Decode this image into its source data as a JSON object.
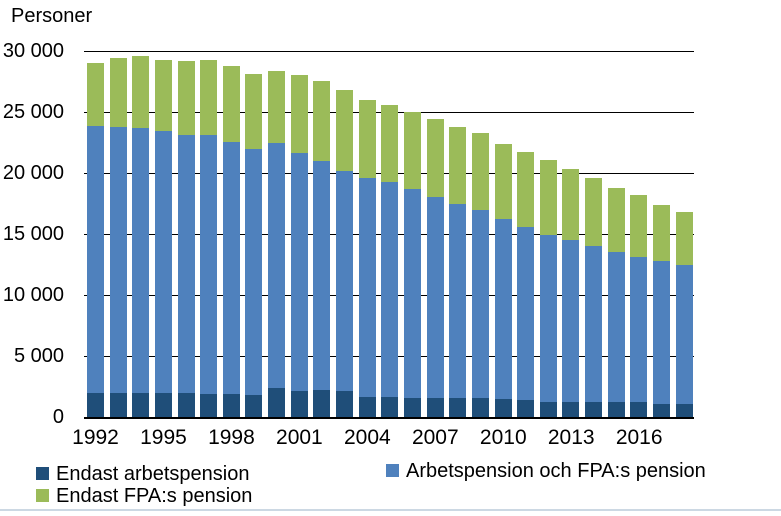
{
  "title": "Personer",
  "colors": {
    "endast_arbetspension": "#1F4E79",
    "arbetspension_och_fpa": "#4F81BD",
    "endast_fpa": "#9BBB59",
    "gridline": "#000000",
    "axis_line": "#000000",
    "bottom_separator": "#ccd8e3"
  },
  "chart_data": {
    "type": "bar",
    "stacked": true,
    "title": "Personer",
    "xlabel": "",
    "ylabel": "Personer",
    "ylim": [
      0,
      30000
    ],
    "grid": "horizontal",
    "legend_position": "bottom",
    "x": [
      1992,
      1993,
      1994,
      1995,
      1996,
      1997,
      1998,
      1999,
      2000,
      2001,
      2002,
      2003,
      2004,
      2005,
      2006,
      2007,
      2008,
      2009,
      2010,
      2011,
      2012,
      2013,
      2014,
      2015,
      2016,
      2017,
      2018
    ],
    "x_tick_labels": [
      "1992",
      "1995",
      "1998",
      "2001",
      "2004",
      "2007",
      "2010",
      "2013",
      "2016"
    ],
    "y_ticks": [
      {
        "value": 30000,
        "label": "30 000"
      },
      {
        "value": 25000,
        "label": "25 000"
      },
      {
        "value": 20000,
        "label": "20 000"
      },
      {
        "value": 15000,
        "label": "15 000"
      },
      {
        "value": 10000,
        "label": "10 000"
      },
      {
        "value": 5000,
        "label": "5 000"
      },
      {
        "value": 0,
        "label": "0"
      }
    ],
    "series": [
      {
        "name": "Endast arbetspension",
        "color": "#1F4E79",
        "stack_order": "bottom",
        "values": [
          1950,
          2000,
          1950,
          2000,
          2000,
          1850,
          1850,
          1800,
          2400,
          2150,
          2200,
          2150,
          1650,
          1600,
          1550,
          1550,
          1550,
          1550,
          1450,
          1400,
          1250,
          1250,
          1250,
          1200,
          1200,
          1100,
          1100
        ]
      },
      {
        "name": "Arbetspension och FPA:s pension",
        "color": "#4F81BD",
        "stack_order": "middle",
        "values": [
          21900,
          21750,
          21700,
          21450,
          21150,
          21250,
          20700,
          20150,
          20050,
          19500,
          18750,
          18050,
          17950,
          17700,
          17150,
          16500,
          15950,
          15400,
          14800,
          14200,
          13650,
          13250,
          12750,
          12350,
          11900,
          11650,
          11350
        ]
      },
      {
        "name": "Endast FPA:s pension",
        "color": "#9BBB59",
        "stack_order": "top",
        "values": [
          5200,
          5700,
          5950,
          5800,
          6000,
          6200,
          6250,
          6200,
          5950,
          6350,
          6600,
          6600,
          6350,
          6300,
          6300,
          6350,
          6300,
          6300,
          6150,
          6100,
          6150,
          5850,
          5600,
          5200,
          5100,
          4650,
          4350
        ]
      }
    ]
  },
  "legend": {
    "items": [
      {
        "label": "Endast arbetspension"
      },
      {
        "label": "Arbetspension och FPA:s pension"
      },
      {
        "label": "Endast FPA:s pension"
      }
    ]
  }
}
